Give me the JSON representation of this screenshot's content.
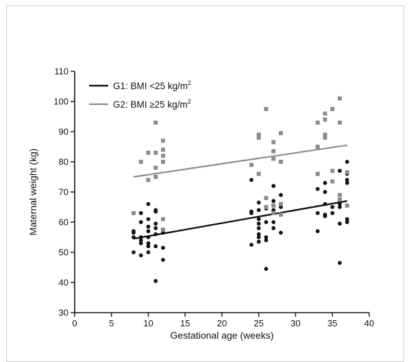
{
  "chart_data": {
    "type": "scatter",
    "title": "",
    "xlabel": "Gestational age (weeks)",
    "ylabel": "Maternal weight (kg)",
    "xlim": [
      0,
      40
    ],
    "ylim": [
      30,
      110
    ],
    "xticks": [
      0,
      5,
      10,
      15,
      20,
      25,
      30,
      35,
      40
    ],
    "yticks": [
      30,
      40,
      50,
      60,
      70,
      80,
      90,
      100,
      110
    ],
    "grid": false,
    "legend_position": "top-left",
    "series": [
      {
        "name": "G1: BMI <25 kg/m",
        "name_superscript": "2",
        "color": "#111111",
        "marker": "circle",
        "trend": [
          [
            8,
            54.5
          ],
          [
            37,
            67
          ]
        ],
        "points": [
          [
            8,
            57
          ],
          [
            8,
            55
          ],
          [
            8,
            50
          ],
          [
            8,
            56.5
          ],
          [
            9,
            63
          ],
          [
            9,
            60
          ],
          [
            9,
            53
          ],
          [
            9,
            49
          ],
          [
            9,
            54
          ],
          [
            9,
            55
          ],
          [
            10,
            66
          ],
          [
            10,
            61
          ],
          [
            10,
            58.5
          ],
          [
            10,
            57
          ],
          [
            10,
            55
          ],
          [
            10,
            53
          ],
          [
            10,
            52
          ],
          [
            10,
            50
          ],
          [
            11,
            64
          ],
          [
            11,
            63.5
          ],
          [
            11,
            59.5
          ],
          [
            11,
            58
          ],
          [
            11,
            56
          ],
          [
            11,
            52
          ],
          [
            11,
            40.5
          ],
          [
            12,
            56.5
          ],
          [
            12,
            51.5
          ],
          [
            12,
            47.5
          ],
          [
            24,
            74
          ],
          [
            24,
            63.5
          ],
          [
            24,
            63
          ],
          [
            24,
            52.5
          ],
          [
            25,
            66.5
          ],
          [
            25,
            64
          ],
          [
            25,
            61
          ],
          [
            25,
            59.5
          ],
          [
            25,
            58
          ],
          [
            25,
            56
          ],
          [
            25,
            55
          ],
          [
            25,
            53.5
          ],
          [
            26,
            64.5
          ],
          [
            26,
            60
          ],
          [
            26,
            55
          ],
          [
            26,
            54
          ],
          [
            26,
            44.5
          ],
          [
            27,
            72
          ],
          [
            27,
            67
          ],
          [
            27,
            65.5
          ],
          [
            27,
            64
          ],
          [
            27,
            60
          ],
          [
            27,
            58
          ],
          [
            28,
            69
          ],
          [
            28,
            65
          ],
          [
            28,
            62.5
          ],
          [
            28,
            56.5
          ],
          [
            33,
            76
          ],
          [
            33,
            71
          ],
          [
            33,
            63
          ],
          [
            33,
            57
          ],
          [
            34,
            73
          ],
          [
            34,
            70
          ],
          [
            34,
            66
          ],
          [
            34,
            62.5
          ],
          [
            34,
            62
          ],
          [
            35,
            65
          ],
          [
            35,
            63
          ],
          [
            36,
            77
          ],
          [
            36,
            69
          ],
          [
            36,
            67
          ],
          [
            36,
            66
          ],
          [
            36,
            65
          ],
          [
            36,
            59.5
          ],
          [
            36,
            46.5
          ],
          [
            37,
            80
          ],
          [
            37,
            76
          ],
          [
            37,
            74
          ],
          [
            37,
            73
          ],
          [
            37,
            61
          ],
          [
            37,
            60
          ]
        ]
      },
      {
        "name": "G2: BMI ≥25 kg/m",
        "name_superscript": "2",
        "color": "#8c8c8c",
        "marker": "square",
        "trend": [
          [
            8,
            75
          ],
          [
            37,
            85.5
          ]
        ],
        "points": [
          [
            8,
            63
          ],
          [
            9,
            80
          ],
          [
            10,
            83
          ],
          [
            10,
            74
          ],
          [
            11,
            93
          ],
          [
            11,
            83
          ],
          [
            11,
            78
          ],
          [
            11,
            75
          ],
          [
            12,
            87
          ],
          [
            12,
            84
          ],
          [
            12,
            82
          ],
          [
            12,
            80
          ],
          [
            12,
            61
          ],
          [
            12,
            57.5
          ],
          [
            24,
            79
          ],
          [
            25,
            89
          ],
          [
            25,
            88
          ],
          [
            25,
            76
          ],
          [
            26,
            97.5
          ],
          [
            26,
            68
          ],
          [
            26,
            65
          ],
          [
            27,
            86.5
          ],
          [
            27,
            83.5
          ],
          [
            27,
            81
          ],
          [
            27,
            65.5
          ],
          [
            27,
            63
          ],
          [
            28,
            89.5
          ],
          [
            28,
            80
          ],
          [
            28,
            66
          ],
          [
            28,
            62.5
          ],
          [
            33,
            93
          ],
          [
            33,
            85
          ],
          [
            33,
            76
          ],
          [
            34,
            96
          ],
          [
            34,
            94
          ],
          [
            34,
            89
          ],
          [
            34,
            88
          ],
          [
            35,
            97.5
          ],
          [
            35,
            77
          ],
          [
            35,
            73.5
          ],
          [
            36,
            101
          ],
          [
            36,
            93
          ],
          [
            36,
            69
          ],
          [
            36,
            67.5
          ],
          [
            37,
            76.5
          ],
          [
            37,
            65.5
          ]
        ]
      }
    ]
  }
}
